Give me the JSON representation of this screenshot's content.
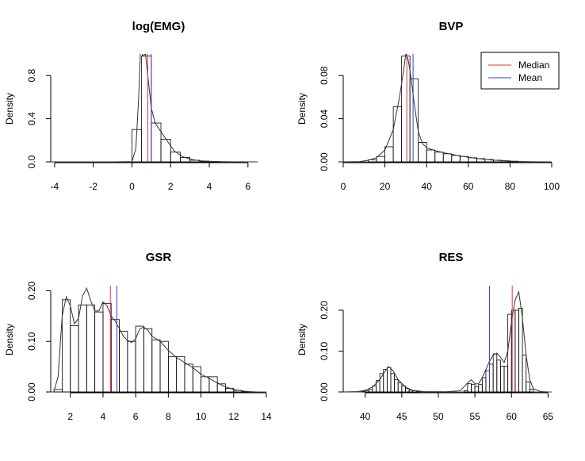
{
  "figure": {
    "legend": {
      "entries": [
        {
          "label": "Median",
          "color": "#e8303a"
        },
        {
          "label": "Mean",
          "color": "#3b3bd6"
        }
      ]
    }
  },
  "chart_data": [
    {
      "type": "histogram",
      "title": "log(EMG)",
      "ylabel": "Density",
      "xlabel": "",
      "xlim": [
        -4.2,
        6.5
      ],
      "ylim": [
        0,
        1.0
      ],
      "xticks": [
        -4,
        -2,
        0,
        2,
        4,
        6
      ],
      "yticks": [
        0.0,
        0.4,
        0.8
      ],
      "bin_width": 0.5,
      "bins": [
        {
          "x0": 0.0,
          "x1": 0.5,
          "density": 0.3
        },
        {
          "x0": 0.5,
          "x1": 1.0,
          "density": 0.98
        },
        {
          "x0": 1.0,
          "x1": 1.5,
          "density": 0.36
        },
        {
          "x0": 1.5,
          "x1": 2.0,
          "density": 0.21
        },
        {
          "x0": 2.0,
          "x1": 2.5,
          "density": 0.09
        },
        {
          "x0": 2.5,
          "x1": 3.0,
          "density": 0.04
        },
        {
          "x0": 3.0,
          "x1": 3.5,
          "density": 0.015
        },
        {
          "x0": 3.5,
          "x1": 4.0,
          "density": 0.007
        },
        {
          "x0": 4.0,
          "x1": 4.5,
          "density": 0.003
        }
      ],
      "density_curve": [
        [
          -4.2,
          0.0
        ],
        [
          -1.0,
          0.0
        ],
        [
          0.0,
          0.003
        ],
        [
          0.2,
          0.12
        ],
        [
          0.35,
          0.6
        ],
        [
          0.45,
          1.08
        ],
        [
          0.55,
          0.98
        ],
        [
          0.7,
          1.0
        ],
        [
          0.85,
          0.75
        ],
        [
          1.0,
          0.5
        ],
        [
          1.2,
          0.36
        ],
        [
          1.5,
          0.28
        ],
        [
          1.8,
          0.2
        ],
        [
          2.2,
          0.1
        ],
        [
          2.6,
          0.05
        ],
        [
          3.0,
          0.025
        ],
        [
          3.5,
          0.01
        ],
        [
          4.0,
          0.005
        ],
        [
          5.0,
          0.001
        ],
        [
          6.5,
          0.0
        ]
      ],
      "median": 0.82,
      "mean": 1.0
    },
    {
      "type": "histogram",
      "title": "BVP",
      "ylabel": "Density",
      "xlabel": "",
      "xlim": [
        0,
        100
      ],
      "ylim": [
        0,
        0.1
      ],
      "xticks": [
        0,
        20,
        40,
        60,
        80,
        100
      ],
      "yticks": [
        0.0,
        0.04,
        0.08
      ],
      "bin_width": 4,
      "bins": [
        {
          "x0": 12,
          "x1": 16,
          "density": 0.002
        },
        {
          "x0": 16,
          "x1": 20,
          "density": 0.005
        },
        {
          "x0": 20,
          "x1": 24,
          "density": 0.014
        },
        {
          "x0": 24,
          "x1": 28,
          "density": 0.051
        },
        {
          "x0": 28,
          "x1": 32,
          "density": 0.098
        },
        {
          "x0": 32,
          "x1": 36,
          "density": 0.077
        },
        {
          "x0": 36,
          "x1": 40,
          "density": 0.018
        },
        {
          "x0": 40,
          "x1": 44,
          "density": 0.011
        },
        {
          "x0": 44,
          "x1": 48,
          "density": 0.009
        },
        {
          "x0": 48,
          "x1": 52,
          "density": 0.0075
        },
        {
          "x0": 52,
          "x1": 56,
          "density": 0.006
        },
        {
          "x0": 56,
          "x1": 60,
          "density": 0.005
        },
        {
          "x0": 60,
          "x1": 64,
          "density": 0.0038
        },
        {
          "x0": 64,
          "x1": 68,
          "density": 0.003
        },
        {
          "x0": 68,
          "x1": 72,
          "density": 0.0022
        },
        {
          "x0": 72,
          "x1": 76,
          "density": 0.0015
        },
        {
          "x0": 76,
          "x1": 80,
          "density": 0.001
        },
        {
          "x0": 80,
          "x1": 84,
          "density": 0.0006
        }
      ],
      "density_curve": [
        [
          0,
          0.0
        ],
        [
          8,
          0.0003
        ],
        [
          12,
          0.0015
        ],
        [
          16,
          0.004
        ],
        [
          20,
          0.011
        ],
        [
          24,
          0.03
        ],
        [
          27,
          0.06
        ],
        [
          29,
          0.085
        ],
        [
          30,
          0.1
        ],
        [
          31,
          0.096
        ],
        [
          32,
          0.085
        ],
        [
          34,
          0.055
        ],
        [
          36,
          0.028
        ],
        [
          38,
          0.017
        ],
        [
          40,
          0.013
        ],
        [
          44,
          0.0105
        ],
        [
          48,
          0.0085
        ],
        [
          52,
          0.007
        ],
        [
          56,
          0.0055
        ],
        [
          60,
          0.0042
        ],
        [
          64,
          0.0032
        ],
        [
          68,
          0.0023
        ],
        [
          72,
          0.0016
        ],
        [
          76,
          0.0011
        ],
        [
          80,
          0.0006
        ],
        [
          86,
          0.0003
        ],
        [
          92,
          0.0001
        ],
        [
          100,
          0.0
        ]
      ],
      "median": 30.5,
      "mean": 33.5
    },
    {
      "type": "histogram",
      "title": "GSR",
      "ylabel": "Density",
      "xlabel": "",
      "xlim": [
        0.8,
        14
      ],
      "ylim": [
        0,
        0.21
      ],
      "xticks": [
        2,
        4,
        6,
        8,
        10,
        12,
        14
      ],
      "yticks": [
        0.0,
        0.1,
        0.2
      ],
      "bin_width": 0.5,
      "bins": [
        {
          "x0": 1.0,
          "x1": 1.5,
          "density": 0.005
        },
        {
          "x0": 1.5,
          "x1": 2.0,
          "density": 0.182
        },
        {
          "x0": 2.0,
          "x1": 2.5,
          "density": 0.131
        },
        {
          "x0": 2.5,
          "x1": 3.0,
          "density": 0.172
        },
        {
          "x0": 3.0,
          "x1": 3.5,
          "density": 0.172
        },
        {
          "x0": 3.5,
          "x1": 4.0,
          "density": 0.158
        },
        {
          "x0": 4.0,
          "x1": 4.5,
          "density": 0.175
        },
        {
          "x0": 4.5,
          "x1": 5.0,
          "density": 0.143
        },
        {
          "x0": 5.0,
          "x1": 5.5,
          "density": 0.12
        },
        {
          "x0": 5.5,
          "x1": 6.0,
          "density": 0.1
        },
        {
          "x0": 6.0,
          "x1": 6.5,
          "density": 0.13
        },
        {
          "x0": 6.5,
          "x1": 7.0,
          "density": 0.125
        },
        {
          "x0": 7.0,
          "x1": 7.5,
          "density": 0.103
        },
        {
          "x0": 7.5,
          "x1": 8.0,
          "density": 0.1
        },
        {
          "x0": 8.0,
          "x1": 8.5,
          "density": 0.07
        },
        {
          "x0": 8.5,
          "x1": 9.0,
          "density": 0.07
        },
        {
          "x0": 9.0,
          "x1": 9.5,
          "density": 0.055
        },
        {
          "x0": 9.5,
          "x1": 10.0,
          "density": 0.05
        },
        {
          "x0": 10.0,
          "x1": 10.5,
          "density": 0.03
        },
        {
          "x0": 10.5,
          "x1": 11.0,
          "density": 0.03
        },
        {
          "x0": 11.0,
          "x1": 11.5,
          "density": 0.016
        },
        {
          "x0": 11.5,
          "x1": 12.0,
          "density": 0.007
        },
        {
          "x0": 12.0,
          "x1": 12.5,
          "density": 0.003
        },
        {
          "x0": 12.5,
          "x1": 13.0,
          "density": 0.001
        }
      ],
      "density_curve": [
        [
          1.0,
          0.002
        ],
        [
          1.25,
          0.03
        ],
        [
          1.5,
          0.15
        ],
        [
          1.75,
          0.188
        ],
        [
          2.0,
          0.17
        ],
        [
          2.25,
          0.135
        ],
        [
          2.5,
          0.145
        ],
        [
          2.75,
          0.19
        ],
        [
          3.0,
          0.205
        ],
        [
          3.25,
          0.18
        ],
        [
          3.5,
          0.16
        ],
        [
          3.75,
          0.16
        ],
        [
          4.0,
          0.178
        ],
        [
          4.25,
          0.17
        ],
        [
          4.5,
          0.15
        ],
        [
          4.75,
          0.14
        ],
        [
          5.0,
          0.125
        ],
        [
          5.25,
          0.11
        ],
        [
          5.5,
          0.102
        ],
        [
          5.75,
          0.098
        ],
        [
          6.0,
          0.105
        ],
        [
          6.25,
          0.125
        ],
        [
          6.5,
          0.128
        ],
        [
          6.75,
          0.122
        ],
        [
          7.0,
          0.11
        ],
        [
          7.5,
          0.1
        ],
        [
          8.0,
          0.082
        ],
        [
          8.5,
          0.068
        ],
        [
          9.0,
          0.058
        ],
        [
          9.5,
          0.048
        ],
        [
          10.0,
          0.035
        ],
        [
          10.5,
          0.027
        ],
        [
          11.0,
          0.018
        ],
        [
          11.5,
          0.01
        ],
        [
          12.0,
          0.005
        ],
        [
          12.5,
          0.002
        ],
        [
          13.0,
          0.0005
        ],
        [
          13.5,
          0.0
        ]
      ],
      "median": 4.45,
      "mean": 4.85
    },
    {
      "type": "histogram",
      "title": "RES",
      "ylabel": "Density",
      "xlabel": "",
      "xlim": [
        37,
        65.5
      ],
      "ylim": [
        0,
        0.26
      ],
      "xticks": [
        40,
        45,
        50,
        55,
        60,
        65
      ],
      "yticks": [
        0.0,
        0.1,
        0.2
      ],
      "bin_width": 0.5,
      "bins": [
        {
          "x0": 39.5,
          "x1": 40.0,
          "density": 0.002
        },
        {
          "x0": 40.0,
          "x1": 40.5,
          "density": 0.003
        },
        {
          "x0": 40.5,
          "x1": 41.0,
          "density": 0.006
        },
        {
          "x0": 41.0,
          "x1": 41.5,
          "density": 0.015
        },
        {
          "x0": 41.5,
          "x1": 42.0,
          "density": 0.028
        },
        {
          "x0": 42.0,
          "x1": 42.5,
          "density": 0.045
        },
        {
          "x0": 42.5,
          "x1": 43.0,
          "density": 0.055
        },
        {
          "x0": 43.0,
          "x1": 43.5,
          "density": 0.06
        },
        {
          "x0": 43.5,
          "x1": 44.0,
          "density": 0.045
        },
        {
          "x0": 44.0,
          "x1": 44.5,
          "density": 0.03
        },
        {
          "x0": 44.5,
          "x1": 45.0,
          "density": 0.022
        },
        {
          "x0": 45.0,
          "x1": 45.5,
          "density": 0.015
        },
        {
          "x0": 45.5,
          "x1": 46.0,
          "density": 0.008
        },
        {
          "x0": 46.0,
          "x1": 46.5,
          "density": 0.004
        },
        {
          "x0": 46.5,
          "x1": 47.0,
          "density": 0.003
        },
        {
          "x0": 47.0,
          "x1": 47.5,
          "density": 0.002
        },
        {
          "x0": 53.5,
          "x1": 54.0,
          "density": 0.003
        },
        {
          "x0": 54.0,
          "x1": 54.5,
          "density": 0.02
        },
        {
          "x0": 54.5,
          "x1": 55.0,
          "density": 0.018
        },
        {
          "x0": 55.0,
          "x1": 55.5,
          "density": 0.013
        },
        {
          "x0": 55.5,
          "x1": 56.0,
          "density": 0.018
        },
        {
          "x0": 56.0,
          "x1": 56.5,
          "density": 0.035
        },
        {
          "x0": 56.5,
          "x1": 57.0,
          "density": 0.052
        },
        {
          "x0": 57.0,
          "x1": 57.5,
          "density": 0.068
        },
        {
          "x0": 57.5,
          "x1": 58.0,
          "density": 0.093
        },
        {
          "x0": 58.0,
          "x1": 58.5,
          "density": 0.078
        },
        {
          "x0": 58.5,
          "x1": 59.0,
          "density": 0.063
        },
        {
          "x0": 59.0,
          "x1": 59.5,
          "density": 0.063
        },
        {
          "x0": 59.5,
          "x1": 60.0,
          "density": 0.19
        },
        {
          "x0": 60.0,
          "x1": 60.5,
          "density": 0.2
        },
        {
          "x0": 60.5,
          "x1": 61.0,
          "density": 0.2
        },
        {
          "x0": 61.0,
          "x1": 61.5,
          "density": 0.205
        },
        {
          "x0": 61.5,
          "x1": 62.0,
          "density": 0.09
        },
        {
          "x0": 62.0,
          "x1": 62.5,
          "density": 0.025
        },
        {
          "x0": 62.5,
          "x1": 63.0,
          "density": 0.007
        }
      ],
      "density_curve": [
        [
          37.0,
          0.0
        ],
        [
          39.0,
          0.001
        ],
        [
          40.0,
          0.004
        ],
        [
          41.0,
          0.012
        ],
        [
          42.0,
          0.03
        ],
        [
          42.7,
          0.05
        ],
        [
          43.2,
          0.062
        ],
        [
          43.8,
          0.052
        ],
        [
          44.5,
          0.03
        ],
        [
          45.5,
          0.012
        ],
        [
          46.5,
          0.004
        ],
        [
          48.0,
          0.001
        ],
        [
          51.0,
          0.0005
        ],
        [
          53.0,
          0.003
        ],
        [
          54.0,
          0.022
        ],
        [
          54.5,
          0.03
        ],
        [
          55.0,
          0.02
        ],
        [
          55.5,
          0.02
        ],
        [
          56.0,
          0.035
        ],
        [
          56.5,
          0.055
        ],
        [
          57.0,
          0.075
        ],
        [
          57.5,
          0.09
        ],
        [
          58.0,
          0.095
        ],
        [
          58.5,
          0.085
        ],
        [
          59.0,
          0.072
        ],
        [
          59.5,
          0.1
        ],
        [
          60.0,
          0.17
        ],
        [
          60.5,
          0.225
        ],
        [
          61.0,
          0.245
        ],
        [
          61.5,
          0.18
        ],
        [
          62.0,
          0.09
        ],
        [
          62.5,
          0.03
        ],
        [
          63.0,
          0.008
        ],
        [
          64.0,
          0.001
        ],
        [
          65.0,
          0.0
        ]
      ],
      "median": 60.1,
      "mean": 57.0
    }
  ]
}
